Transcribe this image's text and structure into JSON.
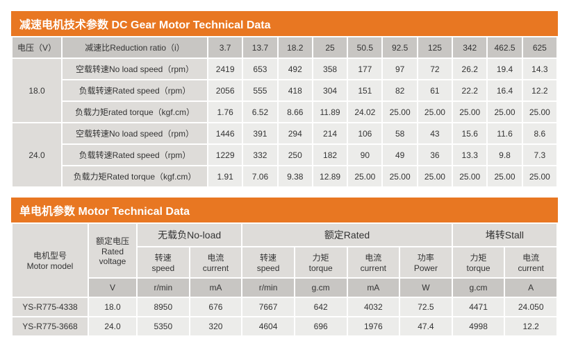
{
  "colors": {
    "accent": "#e87722",
    "header_bg": "#c8c6c3",
    "label_bg": "#dedcd9",
    "value_bg": "#ececea",
    "border": "#ffffff",
    "text": "#333333"
  },
  "gear": {
    "title": "减速电机技术参数 DC Gear Motor Technical Data",
    "voltage_header": "电压（V）",
    "ratio_header": "减速比Reduction ratio（i）",
    "ratios": [
      "3.7",
      "13.7",
      "18.2",
      "25",
      "50.5",
      "92.5",
      "125",
      "342",
      "462.5",
      "625"
    ],
    "row_labels": {
      "noload": "空载转速No load speed（rpm）",
      "rated": "负载转速Rated speed（rpm）",
      "torque_l": "负载力矩rated torque（kgf.cm）",
      "torque_u": "负载力矩Rated torque（kgf.cm）"
    },
    "groups": [
      {
        "voltage": "18.0",
        "noload": [
          "2419",
          "653",
          "492",
          "358",
          "177",
          "97",
          "72",
          "26.2",
          "19.4",
          "14.3"
        ],
        "rated": [
          "2056",
          "555",
          "418",
          "304",
          "151",
          "82",
          "61",
          "22.2",
          "16.4",
          "12.2"
        ],
        "torque": [
          "1.76",
          "6.52",
          "8.66",
          "11.89",
          "24.02",
          "25.00",
          "25.00",
          "25.00",
          "25.00",
          "25.00"
        ]
      },
      {
        "voltage": "24.0",
        "noload": [
          "1446",
          "391",
          "294",
          "214",
          "106",
          "58",
          "43",
          "15.6",
          "11.6",
          "8.6"
        ],
        "rated": [
          "1229",
          "332",
          "250",
          "182",
          "90",
          "49",
          "36",
          "13.3",
          "9.8",
          "7.3"
        ],
        "torque": [
          "1.91",
          "7.06",
          "9.38",
          "12.89",
          "25.00",
          "25.00",
          "25.00",
          "25.00",
          "25.00",
          "25.00"
        ]
      }
    ]
  },
  "motor": {
    "title": "单电机参数  Motor Technical Data",
    "model_header": "电机型号\nMotor model",
    "voltage_header": "额定电压\nRated\nvoltage",
    "groups": {
      "noload": "无载负No-load",
      "rated": "额定Rated",
      "stall": "堵转Stall"
    },
    "cols": {
      "speed": "转速\nspeed",
      "current": "电流\ncurrent",
      "torque": "力矩\ntorque",
      "power": "功率\nPower"
    },
    "units": {
      "voltage": "V",
      "speed": "r/min",
      "current_ma": "mA",
      "torque": "g.cm",
      "power": "W",
      "current_a": "A"
    },
    "rows": [
      {
        "model": "YS-R775-4338",
        "voltage": "18.0",
        "nl_speed": "8950",
        "nl_cur": "676",
        "r_speed": "7667",
        "r_torque": "642",
        "r_cur": "4032",
        "r_power": "72.5",
        "s_torque": "4471",
        "s_cur": "24.050"
      },
      {
        "model": "YS-R775-3668",
        "voltage": "24.0",
        "nl_speed": "5350",
        "nl_cur": "320",
        "r_speed": "4604",
        "r_torque": "696",
        "r_cur": "1976",
        "r_power": "47.4",
        "s_torque": "4998",
        "s_cur": "12.2"
      }
    ]
  }
}
